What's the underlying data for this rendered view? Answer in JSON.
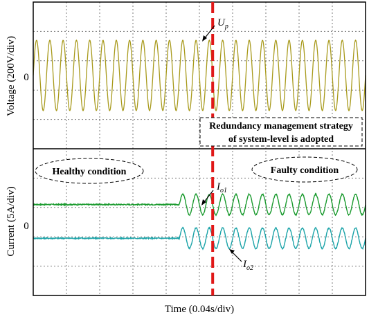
{
  "chart_data": {
    "type": "line",
    "title": "",
    "xlabel": "Time (0.04s/div)",
    "x_divisions": 10,
    "upper_panel": {
      "ylabel": "Voltage (200V/div)",
      "zero_label": "0",
      "y_divisions": 5,
      "series": [
        {
          "name": "U_p",
          "label_main": "U",
          "label_sub": "p",
          "color": "#a89a1c",
          "amplitude_div": 1.2,
          "cycles_per_div": 2.5,
          "offset_div": 0
        }
      ]
    },
    "lower_panel": {
      "ylabel": "Current (5A/div)",
      "zero_label": "0",
      "y_divisions": 5,
      "series": [
        {
          "name": "I_o1",
          "label_main": "I",
          "label_sub": "o1",
          "color": "#1a9a2e",
          "offset_div": 0.6,
          "amplitude_before_div": 0,
          "amplitude_after_div": 0.35,
          "start_div": 4.4,
          "cycles_per_div": 2.5
        },
        {
          "name": "I_o2",
          "label_main": "I",
          "label_sub": "o2",
          "color": "#1aa3a8",
          "offset_div": -0.55,
          "amplitude_before_div": 0,
          "amplitude_after_div": 0.35,
          "start_div": 4.4,
          "cycles_per_div": 2.5
        }
      ]
    },
    "fault_marker_div": 5.4,
    "annotations": {
      "strategy_line1": "Redundancy management strategy",
      "strategy_line2": "of system-level is adopted",
      "healthy": "Healthy condition",
      "faulty": "Faulty condition"
    },
    "colors": {
      "frame": "#000000",
      "grid": "#7a7a7a",
      "marker": "#e01818",
      "strategy_text": "#0b4a5a",
      "faulty_text": "#18a0d8",
      "healthy_text": "#000000"
    }
  }
}
